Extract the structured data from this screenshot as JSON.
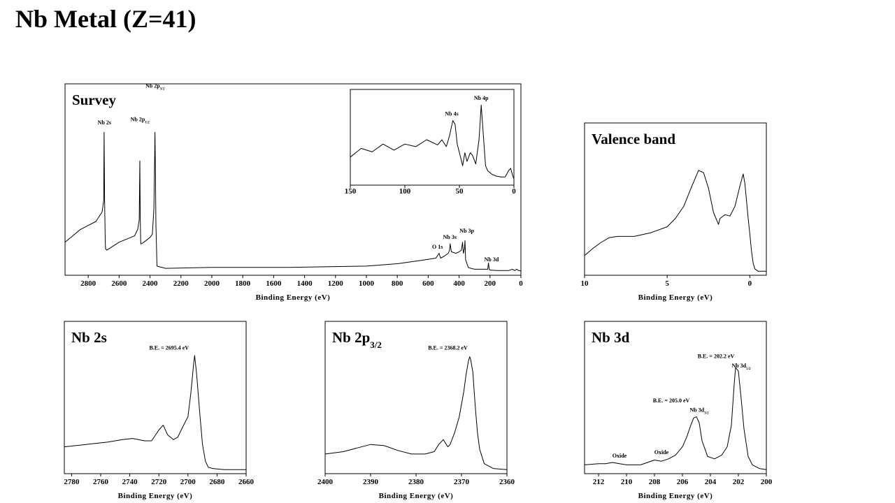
{
  "page": {
    "title": "Nb Metal (Z=41)"
  },
  "chart_data": [
    {
      "id": "survey",
      "type": "line",
      "title": "Survey",
      "xlabel": "Binding Energy (eV)",
      "xlim": [
        2950,
        0
      ],
      "x_reversed": true,
      "xticks": [
        2800,
        2600,
        2400,
        2200,
        2000,
        1800,
        1600,
        1400,
        1200,
        1000,
        800,
        600,
        400,
        200,
        0
      ],
      "ylim": [
        0,
        1
      ],
      "series": [
        {
          "x": [
            2950,
            2850,
            2750,
            2710,
            2700,
            2697,
            2694,
            2690,
            2688,
            2680,
            2600,
            2500,
            2480,
            2470,
            2466,
            2463,
            2460,
            2455,
            2440,
            2400,
            2385,
            2375,
            2370,
            2368,
            2366,
            2362,
            2355,
            2300,
            2000,
            1500,
            1000,
            800,
            650,
            550,
            530,
            520,
            500,
            470,
            462,
            458,
            450,
            420,
            400,
            385,
            378,
            372,
            365,
            362,
            358,
            340,
            300,
            250,
            215,
            210,
            205,
            200,
            150,
            80,
            55,
            40,
            28,
            15,
            0
          ],
          "y": [
            0.19,
            0.27,
            0.32,
            0.38,
            0.45,
            0.88,
            0.45,
            0.2,
            0.15,
            0.14,
            0.19,
            0.23,
            0.27,
            0.33,
            0.7,
            0.33,
            0.18,
            0.18,
            0.19,
            0.22,
            0.24,
            0.4,
            0.72,
            0.88,
            0.72,
            0.3,
            0.04,
            0.026,
            0.032,
            0.032,
            0.04,
            0.055,
            0.075,
            0.09,
            0.12,
            0.09,
            0.1,
            0.12,
            0.14,
            0.18,
            0.13,
            0.12,
            0.13,
            0.14,
            0.19,
            0.12,
            0.15,
            0.2,
            0.08,
            0.03,
            0.02,
            0.02,
            0.02,
            0.06,
            0.02,
            0.015,
            0.012,
            0.012,
            0.02,
            0.012,
            0.02,
            0.012,
            0.01
          ]
        }
      ],
      "annotations": [
        {
          "text": "Nb 2s",
          "x": 2695,
          "y": 0.93
        },
        {
          "text": "Nb 2p",
          "sub": "1/2",
          "x": 2465,
          "y": 0.95
        },
        {
          "text": "Nb 2p",
          "sub": "3/2",
          "x": 2368,
          "y": 1.16
        },
        {
          "text": "O 1s",
          "x": 540,
          "y": 0.15
        },
        {
          "text": "Nb 3s",
          "x": 460,
          "y": 0.21
        },
        {
          "text": "Nb 3p",
          "x": 350,
          "y": 0.25
        },
        {
          "text": "Nb 3d",
          "x": 190,
          "y": 0.07
        }
      ]
    },
    {
      "id": "survey-inset",
      "type": "line",
      "title": "",
      "xlabel": "",
      "xlim": [
        150,
        0
      ],
      "x_reversed": true,
      "xticks": [
        150,
        100,
        50,
        0
      ],
      "ylim": [
        0,
        1
      ],
      "series": [
        {
          "x": [
            150,
            140,
            130,
            120,
            110,
            100,
            90,
            80,
            70,
            66,
            62,
            59,
            56,
            54,
            52,
            49,
            47,
            45,
            43,
            40,
            38,
            35,
            32,
            30,
            28,
            26,
            24,
            20,
            16,
            12,
            8,
            5,
            3,
            1,
            0
          ],
          "y": [
            0.3,
            0.4,
            0.36,
            0.45,
            0.38,
            0.45,
            0.42,
            0.5,
            0.44,
            0.5,
            0.42,
            0.55,
            0.72,
            0.68,
            0.45,
            0.3,
            0.2,
            0.35,
            0.25,
            0.35,
            0.32,
            0.22,
            0.5,
            0.9,
            0.55,
            0.2,
            0.14,
            0.1,
            0.08,
            0.07,
            0.07,
            0.14,
            0.17,
            0.08,
            0.05
          ]
        }
      ],
      "annotations": [
        {
          "text": "Nb 4s",
          "x": 57,
          "y": 0.78
        },
        {
          "text": "Nb 4p",
          "x": 30,
          "y": 0.96
        }
      ]
    },
    {
      "id": "valence-band",
      "type": "line",
      "title": "Valence band",
      "xlabel": "Binding Energy (eV)",
      "xlim": [
        10,
        -1
      ],
      "x_reversed": true,
      "xticks": [
        10,
        5,
        0
      ],
      "ylim": [
        0,
        1
      ],
      "series": [
        {
          "x": [
            10,
            9.5,
            9,
            8.5,
            8,
            7,
            6,
            5,
            4.5,
            4,
            3.5,
            3.1,
            2.8,
            2.5,
            2.2,
            1.9,
            1.8,
            1.5,
            1.2,
            0.9,
            0.6,
            0.4,
            0.3,
            0.2,
            0.1,
            0,
            -0.1,
            -0.2,
            -0.3,
            -0.5,
            -1
          ],
          "y": [
            0.14,
            0.2,
            0.25,
            0.29,
            0.3,
            0.3,
            0.33,
            0.38,
            0.45,
            0.55,
            0.72,
            0.85,
            0.83,
            0.7,
            0.5,
            0.4,
            0.45,
            0.48,
            0.47,
            0.55,
            0.72,
            0.82,
            0.74,
            0.6,
            0.45,
            0.32,
            0.18,
            0.08,
            0.03,
            0.01,
            0.01
          ]
        }
      ],
      "annotations": []
    },
    {
      "id": "nb-2s",
      "type": "line",
      "title": "Nb 2s",
      "xlabel": "Binding Energy (eV)",
      "xlim": [
        2785,
        2660
      ],
      "x_reversed": true,
      "xticks": [
        2780,
        2760,
        2740,
        2720,
        2700,
        2680,
        2660
      ],
      "ylim": [
        0,
        1
      ],
      "series": [
        {
          "x": [
            2785,
            2770,
            2755,
            2745,
            2738,
            2730,
            2725,
            2720,
            2717,
            2714,
            2710,
            2707,
            2703,
            2700,
            2698,
            2696,
            2695.4,
            2694,
            2692,
            2690,
            2688,
            2686,
            2683,
            2675,
            2660
          ],
          "y": [
            0.2,
            0.22,
            0.24,
            0.26,
            0.27,
            0.25,
            0.25,
            0.34,
            0.38,
            0.3,
            0.26,
            0.28,
            0.38,
            0.45,
            0.65,
            0.9,
            0.96,
            0.8,
            0.5,
            0.22,
            0.08,
            0.03,
            0.02,
            0.01,
            0.01
          ]
        }
      ],
      "annotations": [
        {
          "text": "B.E. = 2695.4 eV",
          "x": 2713,
          "y": 1.01
        }
      ]
    },
    {
      "id": "nb-2p32",
      "type": "line",
      "title": "Nb 2p",
      "title_sub": "3/2",
      "xlabel": "Binding Energy (eV)",
      "xlim": [
        2400,
        2360
      ],
      "x_reversed": true,
      "xticks": [
        2400,
        2390,
        2380,
        2370,
        2360
      ],
      "ylim": [
        0,
        1
      ],
      "series": [
        {
          "x": [
            2400,
            2396,
            2393,
            2390,
            2387,
            2384,
            2381,
            2378,
            2376,
            2375,
            2374,
            2373,
            2372.5,
            2371.5,
            2370.5,
            2369.5,
            2369,
            2368.5,
            2368.2,
            2368,
            2367.5,
            2367,
            2366.5,
            2366,
            2365,
            2363,
            2360
          ],
          "y": [
            0.14,
            0.16,
            0.19,
            0.22,
            0.21,
            0.17,
            0.14,
            0.14,
            0.16,
            0.22,
            0.26,
            0.2,
            0.22,
            0.32,
            0.45,
            0.66,
            0.8,
            0.91,
            0.95,
            0.93,
            0.82,
            0.55,
            0.32,
            0.18,
            0.06,
            0.02,
            0.01
          ]
        }
      ],
      "annotations": [
        {
          "text": "B.E. = 2368.2 eV",
          "x": 2373,
          "y": 1.01
        }
      ]
    },
    {
      "id": "nb-3d",
      "type": "line",
      "title": "Nb 3d",
      "xlabel": "Binding Energy (eV)",
      "xlim": [
        213,
        200
      ],
      "x_reversed": true,
      "xticks": [
        212,
        210,
        208,
        206,
        204,
        202,
        200
      ],
      "ylim": [
        0,
        1
      ],
      "series": [
        {
          "x": [
            213,
            212,
            211.5,
            211,
            210.5,
            210,
            209,
            208.5,
            208,
            207.5,
            207,
            206.5,
            206,
            205.7,
            205.4,
            205.2,
            205,
            204.8,
            204.6,
            204.2,
            203.7,
            203.2,
            202.8,
            202.5,
            202.3,
            202.2,
            202,
            201.8,
            201.6,
            201.3,
            201,
            200.5,
            200
          ],
          "y": [
            0.05,
            0.06,
            0.06,
            0.07,
            0.06,
            0.05,
            0.05,
            0.07,
            0.09,
            0.08,
            0.1,
            0.13,
            0.2,
            0.28,
            0.38,
            0.44,
            0.45,
            0.4,
            0.25,
            0.12,
            0.1,
            0.13,
            0.2,
            0.38,
            0.72,
            0.86,
            0.83,
            0.6,
            0.35,
            0.12,
            0.05,
            0.02,
            0.01
          ]
        }
      ],
      "annotations": [
        {
          "text": "Oxide",
          "x": 210.5,
          "y": 0.11
        },
        {
          "text": "Oxide",
          "x": 207.5,
          "y": 0.14
        },
        {
          "text": "B.E. = 205.0 eV",
          "x": 206.8,
          "y": 0.57
        },
        {
          "text": "Nb 3d",
          "sub": "3/2",
          "x": 204.8,
          "y": 0.49
        },
        {
          "text": "B.E. = 202.2 eV",
          "x": 203.6,
          "y": 0.94
        },
        {
          "text": "Nb 3d",
          "sub": "5/2",
          "x": 201.8,
          "y": 0.86
        }
      ]
    }
  ]
}
